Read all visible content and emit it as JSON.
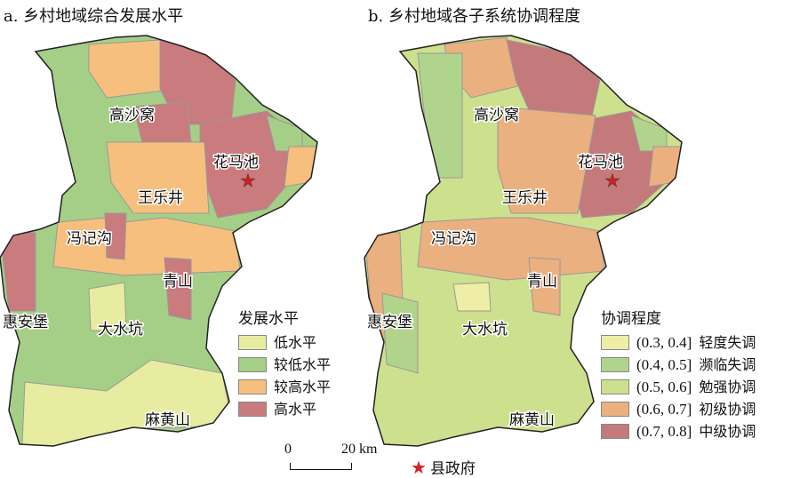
{
  "panels": [
    {
      "title": "a. 乡村地域综合发展水平",
      "legend": {
        "title": "发展水平",
        "items": [
          {
            "label": "低水平",
            "color": "#e8eca0"
          },
          {
            "label": "较低水平",
            "color": "#a5cf87"
          },
          {
            "label": "较高水平",
            "color": "#f7bf7e"
          },
          {
            "label": "高水平",
            "color": "#c97b7e"
          }
        ]
      }
    },
    {
      "title": "b. 乡村地域各子系统协调程度",
      "legend": {
        "title": "协调程度",
        "items": [
          {
            "range": "(0.3, 0.4]",
            "label": "轻度失调",
            "color": "#eeeea6"
          },
          {
            "range": "(0.4, 0.5]",
            "label": "濒临失调",
            "color": "#b1d48c"
          },
          {
            "range": "(0.5, 0.6]",
            "label": "勉强协调",
            "color": "#cde08e"
          },
          {
            "range": "(0.6, 0.7]",
            "label": "初级协调",
            "color": "#ebb07f"
          },
          {
            "range": "(0.7, 0.8]",
            "label": "中级协调",
            "color": "#c47a7a"
          }
        ]
      }
    }
  ],
  "towns": [
    "高沙窝",
    "花马池",
    "王乐井",
    "冯记沟",
    "青山",
    "惠安堡",
    "大水坑",
    "麻黄山"
  ],
  "scale": {
    "zero": "0",
    "max": "20 km"
  },
  "county_seat": {
    "label": "县政府",
    "icon": "red-star-icon",
    "color": "#d42020"
  }
}
